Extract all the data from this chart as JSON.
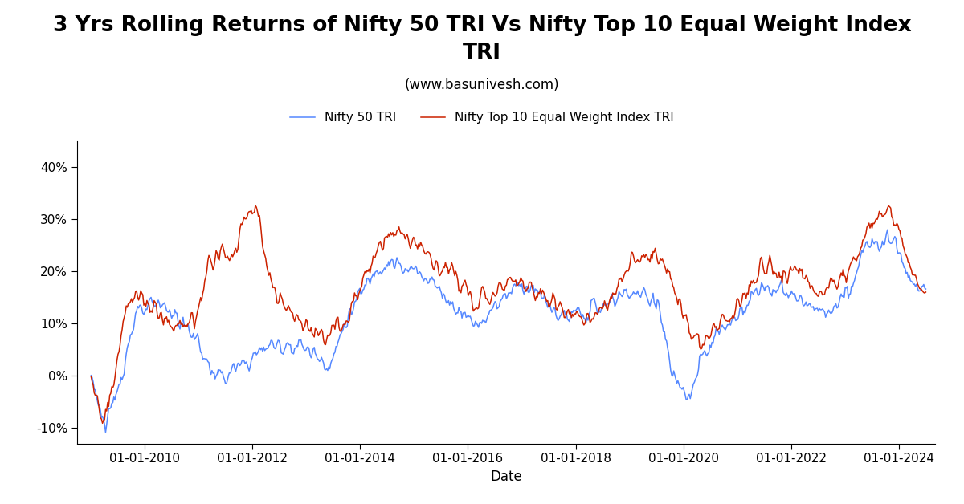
{
  "title": "3 Yrs Rolling Returns of Nifty 50 TRI Vs Nifty Top 10 Equal Weight Index\nTRI",
  "subtitle": "(www.basunivesh.com)",
  "xlabel": "Date",
  "ylabel": "",
  "legend_nifty50": "Nifty 50 TRI",
  "legend_top10": "Nifty Top 10 Equal Weight Index TRI",
  "color_nifty50": "#5588ff",
  "color_top10": "#cc2200",
  "ylim": [
    -0.13,
    0.45
  ],
  "yticks": [
    -0.1,
    0.0,
    0.1,
    0.2,
    0.3,
    0.4
  ],
  "ytick_labels": [
    "-10%",
    "0%",
    "10%",
    "20%",
    "30%",
    "40%"
  ],
  "background_color": "#ffffff",
  "title_fontsize": 19,
  "subtitle_fontsize": 12,
  "legend_fontsize": 11,
  "axis_fontsize": 11,
  "xlabel_fontsize": 12
}
